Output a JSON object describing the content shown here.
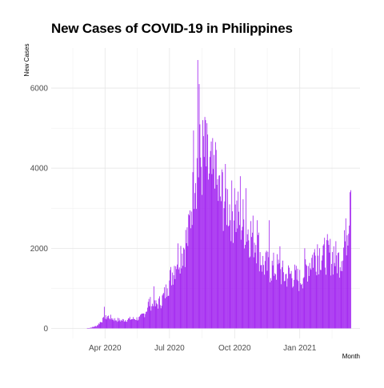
{
  "chart_data": {
    "type": "bar",
    "title": "New Cases of COVID-19 in Philippines",
    "xlabel": "Month",
    "ylabel": "New Cases",
    "x_start": "2020-01-30",
    "x_end": "2021-03-14",
    "xlim": [
      "2020-01-16",
      "2021-03-27"
    ],
    "ylim": [
      -250,
      7000
    ],
    "y_ticks": [
      0,
      2000,
      4000,
      6000
    ],
    "y_tick_labels": [
      "0",
      "2000",
      "4000",
      "6000"
    ],
    "x_ticks": [
      "2020-04-01",
      "2020-07-01",
      "2020-10-01",
      "2021-01-01"
    ],
    "x_tick_labels": [
      "Apr 2020",
      "Jul 2020",
      "Oct 2020",
      "Jan 2021"
    ],
    "bar_color": "#a020f0",
    "grid": true,
    "control_points": [
      [
        "2020-01-30",
        0
      ],
      [
        "2020-03-06",
        0
      ],
      [
        "2020-03-10",
        10
      ],
      [
        "2020-03-14",
        30
      ],
      [
        "2020-03-20",
        60
      ],
      [
        "2020-03-28",
        200
      ],
      [
        "2020-04-05",
        300
      ],
      [
        "2020-04-15",
        220
      ],
      [
        "2020-04-25",
        200
      ],
      [
        "2020-05-05",
        230
      ],
      [
        "2020-05-20",
        250
      ],
      [
        "2020-05-28",
        400
      ],
      [
        "2020-06-02",
        650
      ],
      [
        "2020-06-10",
        550
      ],
      [
        "2020-06-20",
        700
      ],
      [
        "2020-06-28",
        1000
      ],
      [
        "2020-07-05",
        1400
      ],
      [
        "2020-07-12",
        1800
      ],
      [
        "2020-07-20",
        2000
      ],
      [
        "2020-07-28",
        2300
      ],
      [
        "2020-08-03",
        3600
      ],
      [
        "2020-08-06",
        4100
      ],
      [
        "2020-08-10",
        4000
      ],
      [
        "2020-08-14",
        4200
      ],
      [
        "2020-08-20",
        4300
      ],
      [
        "2020-08-25",
        3900
      ],
      [
        "2020-09-01",
        3700
      ],
      [
        "2020-09-10",
        3300
      ],
      [
        "2020-09-20",
        3200
      ],
      [
        "2020-09-28",
        2900
      ],
      [
        "2020-10-05",
        2800
      ],
      [
        "2020-10-15",
        2600
      ],
      [
        "2020-10-22",
        2400
      ],
      [
        "2020-11-01",
        2200
      ],
      [
        "2020-11-10",
        1600
      ],
      [
        "2020-11-20",
        1500
      ],
      [
        "2020-12-01",
        1500
      ],
      [
        "2020-12-10",
        1300
      ],
      [
        "2020-12-20",
        1350
      ],
      [
        "2021-01-01",
        1200
      ],
      [
        "2021-01-10",
        1500
      ],
      [
        "2021-01-20",
        1800
      ],
      [
        "2021-02-01",
        1900
      ],
      [
        "2021-02-15",
        1800
      ],
      [
        "2021-02-25",
        1700
      ],
      [
        "2021-03-02",
        1900
      ],
      [
        "2021-03-07",
        2200
      ],
      [
        "2021-03-10",
        2700
      ],
      [
        "2021-03-12",
        3200
      ],
      [
        "2021-03-14",
        3400
      ]
    ],
    "peaks": [
      [
        "2020-03-31",
        540
      ],
      [
        "2020-06-09",
        1050
      ],
      [
        "2020-06-28",
        1000
      ],
      [
        "2020-07-31",
        2500
      ],
      [
        "2020-08-03",
        3900
      ],
      [
        "2020-08-04",
        4940
      ],
      [
        "2020-08-10",
        6700
      ],
      [
        "2020-08-12",
        6100
      ],
      [
        "2020-08-18",
        4800
      ],
      [
        "2020-08-21",
        5200
      ],
      [
        "2020-09-04",
        4650
      ],
      [
        "2020-09-14",
        3900
      ],
      [
        "2020-10-01",
        3500
      ],
      [
        "2020-10-09",
        3800
      ],
      [
        "2020-10-17",
        3500
      ],
      [
        "2020-11-02",
        2700
      ],
      [
        "2020-11-19",
        2700
      ],
      [
        "2020-12-04",
        2050
      ],
      [
        "2021-01-08",
        2000
      ],
      [
        "2021-01-26",
        2100
      ],
      [
        "2021-02-04",
        2100
      ],
      [
        "2021-02-18",
        2050
      ],
      [
        "2021-03-05",
        2450
      ],
      [
        "2021-03-13",
        3400
      ],
      [
        "2021-03-14",
        3450
      ]
    ]
  }
}
